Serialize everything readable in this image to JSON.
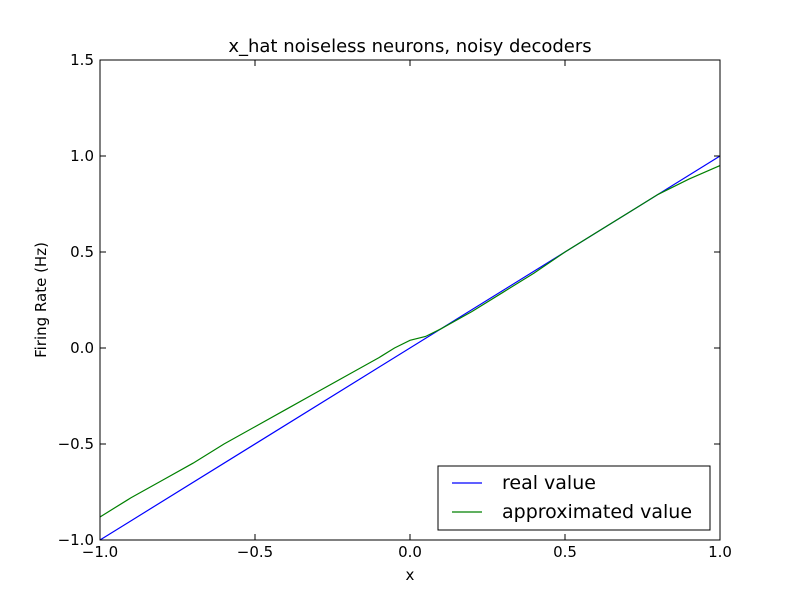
{
  "chart_data": {
    "type": "line",
    "title": "x_hat noiseless neurons, noisy decoders",
    "xlabel": "x",
    "ylabel": "Firing Rate (Hz)",
    "xlim": [
      -1.0,
      1.0
    ],
    "ylim": [
      -1.0,
      1.5
    ],
    "xticks": [
      "−1.0",
      "−0.5",
      "0.0",
      "0.5",
      "1.0"
    ],
    "yticks": [
      "−1.0",
      "−0.5",
      "0.0",
      "0.5",
      "1.0",
      "1.5"
    ],
    "grid": false,
    "legend_position": "bottom-right",
    "series": [
      {
        "name": "real value",
        "color": "#0000ff",
        "x": [
          -1.0,
          1.0
        ],
        "y": [
          -1.0,
          1.0
        ]
      },
      {
        "name": "approximated value",
        "color": "#008000",
        "x": [
          -1.0,
          -0.9,
          -0.8,
          -0.7,
          -0.6,
          -0.5,
          -0.4,
          -0.3,
          -0.2,
          -0.1,
          -0.05,
          0.0,
          0.05,
          0.1,
          0.2,
          0.3,
          0.4,
          0.5,
          0.6,
          0.7,
          0.8,
          0.9,
          1.0
        ],
        "y": [
          -0.88,
          -0.78,
          -0.69,
          -0.6,
          -0.5,
          -0.41,
          -0.32,
          -0.23,
          -0.14,
          -0.05,
          0.0,
          0.04,
          0.06,
          0.1,
          0.19,
          0.29,
          0.39,
          0.5,
          0.6,
          0.7,
          0.8,
          0.88,
          0.95
        ]
      }
    ]
  }
}
